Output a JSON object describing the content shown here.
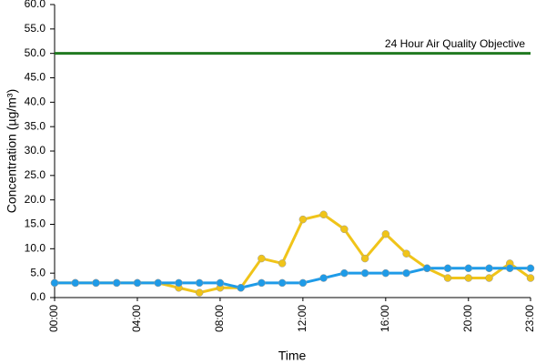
{
  "chart_data": {
    "type": "line",
    "y_label": "Concentration (µg/m³)",
    "x_label": "Time",
    "categories": [
      "00:00",
      null,
      null,
      null,
      "04:00",
      null,
      null,
      null,
      "08:00",
      null,
      null,
      null,
      "12:00",
      null,
      null,
      null,
      "16:00",
      null,
      null,
      null,
      "20:00",
      null,
      null,
      "23:00"
    ],
    "series": [
      {
        "color": "#f0c419",
        "values": [
          3,
          3,
          3,
          3,
          3,
          3,
          2,
          1,
          2,
          2,
          8,
          7,
          16,
          17,
          14,
          8,
          13,
          9,
          6,
          4,
          4,
          4,
          7,
          4
        ]
      },
      {
        "color": "#1e9be8",
        "values": [
          3,
          3,
          3,
          3,
          3,
          3,
          3,
          3,
          3,
          2,
          3,
          3,
          3,
          4,
          5,
          5,
          5,
          5,
          6,
          6,
          6,
          6,
          6,
          6
        ]
      }
    ],
    "reference_line": {
      "value": 50,
      "label": "24 Hour Air Quality Objective",
      "color": "#217a21"
    },
    "ylim": [
      0,
      60
    ],
    "yticks": [
      {
        "value": 0,
        "label": "0.0"
      },
      {
        "value": 5,
        "label": "5.0"
      },
      {
        "value": 10,
        "label": "10.0"
      },
      {
        "value": 15,
        "label": "15.0"
      },
      {
        "value": 20,
        "label": "20.0"
      },
      {
        "value": 25,
        "label": "25.0"
      },
      {
        "value": 30,
        "label": "30.0"
      },
      {
        "value": 35,
        "label": "35.0"
      },
      {
        "value": 40,
        "label": "40.0"
      },
      {
        "value": 45,
        "label": "45.0"
      },
      {
        "value": 50,
        "label": "50.0"
      },
      {
        "value": 55,
        "label": "55.0"
      },
      {
        "value": 60,
        "label": "60.0"
      }
    ],
    "grid": false
  }
}
